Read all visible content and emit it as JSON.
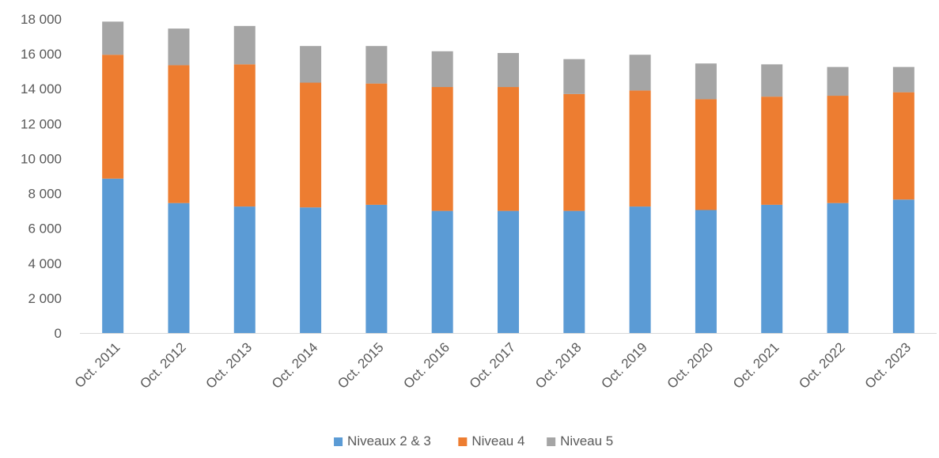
{
  "chart_data": {
    "type": "bar",
    "stacked": true,
    "categories": [
      "Oct. 2011",
      "Oct. 2012",
      "Oct. 2013",
      "Oct. 2014",
      "Oct. 2015",
      "Oct. 2016",
      "Oct. 2017",
      "Oct. 2018",
      "Oct. 2019",
      "Oct. 2020",
      "Oct. 2021",
      "Oct. 2022",
      "Oct. 2023"
    ],
    "series": [
      {
        "name": "Niveaux 2 & 3",
        "color": "#5B9BD5",
        "values": [
          8850,
          7450,
          7250,
          7200,
          7350,
          7000,
          7000,
          7000,
          7250,
          7050,
          7350,
          7450,
          7650
        ]
      },
      {
        "name": "Niveau 4",
        "color": "#ED7D31",
        "values": [
          7100,
          7900,
          8150,
          7150,
          6950,
          7100,
          7100,
          6700,
          6650,
          6350,
          6200,
          6150,
          6150
        ]
      },
      {
        "name": "Niveau 5",
        "color": "#A5A5A5",
        "values": [
          1900,
          2100,
          2200,
          2100,
          2150,
          2050,
          1950,
          2000,
          2050,
          2050,
          1850,
          1650,
          1450
        ]
      }
    ],
    "ylim": [
      0,
      18000
    ],
    "yticks": [
      0,
      2000,
      4000,
      6000,
      8000,
      10000,
      12000,
      14000,
      16000,
      18000
    ],
    "ytick_labels": [
      "0",
      "2 000",
      "4 000",
      "6 000",
      "8 000",
      "10 000",
      "12 000",
      "14 000",
      "16 000",
      "18 000"
    ],
    "grid": false,
    "legend": "bottom",
    "title": "",
    "xlabel": "",
    "ylabel": ""
  }
}
